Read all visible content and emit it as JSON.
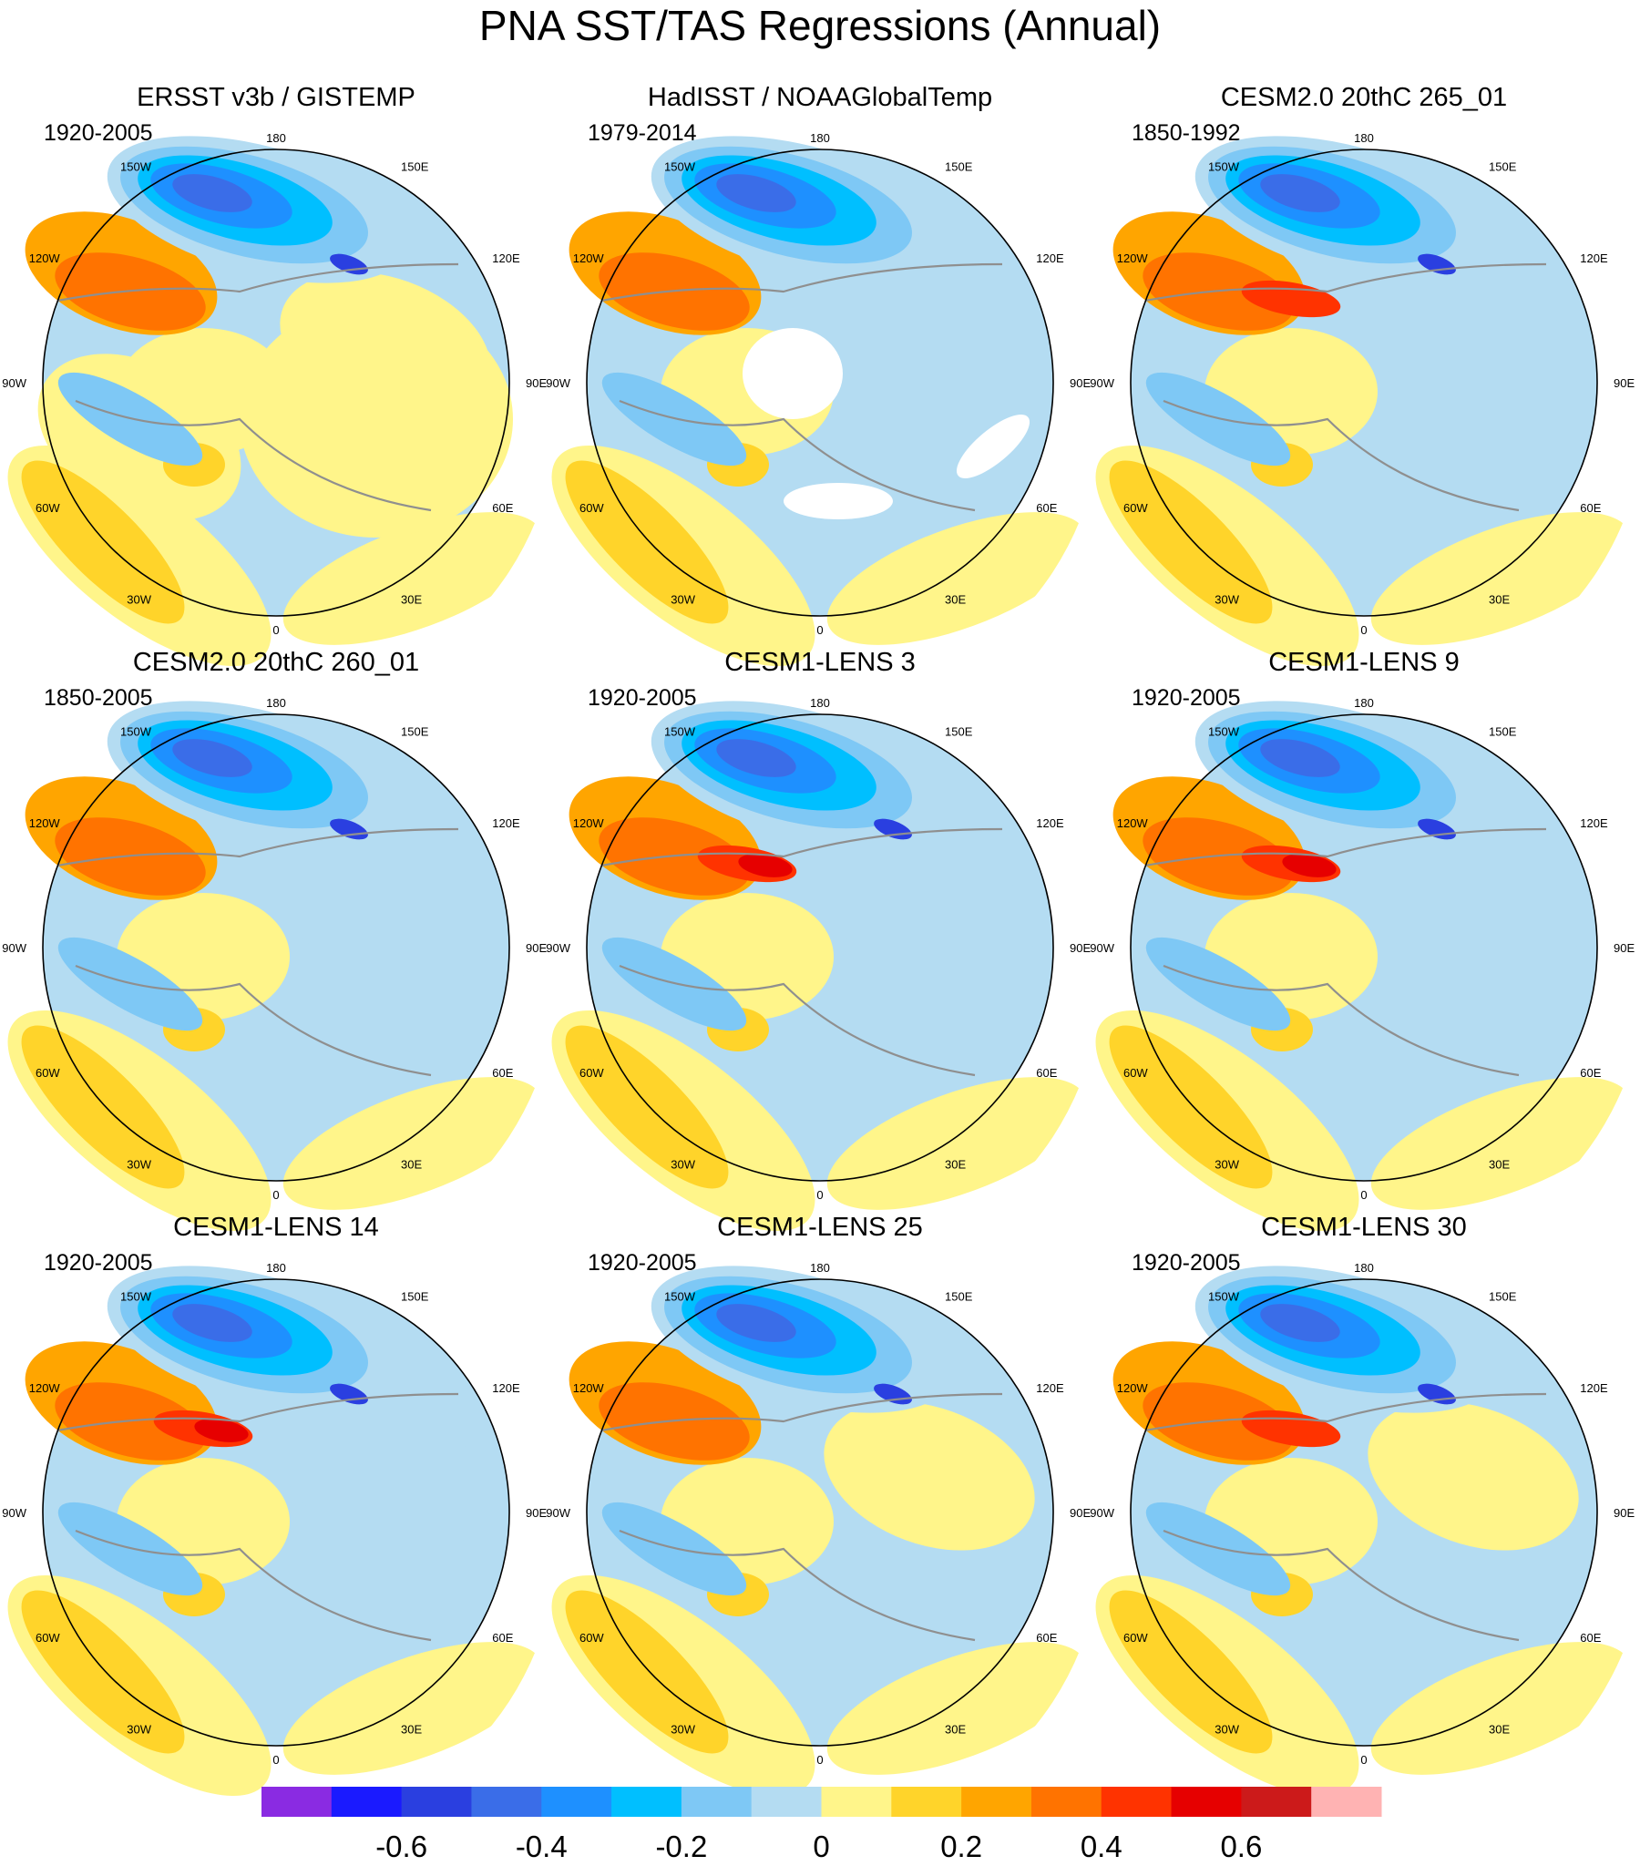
{
  "figure_title": "PNA SST/TAS Regressions (Annual)",
  "chart_data": {
    "type": "heatmap",
    "projection": "north polar stereographic",
    "longitude_labels": [
      "180",
      "150E",
      "120E",
      "90E",
      "60E",
      "30E",
      "0",
      "30W",
      "60W",
      "90W",
      "120W",
      "150W"
    ],
    "panels": [
      {
        "title": "ERSST v3b / GISTEMP",
        "period": "1920-2005"
      },
      {
        "title": "HadISST / NOAAGlobalTemp",
        "period": "1979-2014"
      },
      {
        "title": "CESM2.0 20thC 265_01",
        "period": "1850-1992"
      },
      {
        "title": "CESM2.0 20thC 260_01",
        "period": "1850-2005"
      },
      {
        "title": "CESM1-LENS 3",
        "period": "1920-2005"
      },
      {
        "title": "CESM1-LENS 9",
        "period": "1920-2005"
      },
      {
        "title": "CESM1-LENS 14",
        "period": "1920-2005"
      },
      {
        "title": "CESM1-LENS 25",
        "period": "1920-2005"
      },
      {
        "title": "CESM1-LENS 30",
        "period": "1920-2005"
      }
    ],
    "colorbar": {
      "colors": [
        "#8a2be2",
        "#1a1aff",
        "#2a3fe0",
        "#3a6de8",
        "#1e90ff",
        "#00bfff",
        "#7ec8f5",
        "#b4dcf2",
        "#fff58a",
        "#ffd42a",
        "#ffa500",
        "#ff7300",
        "#ff3300",
        "#e60000",
        "#cc1a1a",
        "#ffb3b3"
      ],
      "tick_labels": [
        "-0.6",
        "-0.4",
        "-0.2",
        "0",
        "0.2",
        "0.4",
        "0.6"
      ],
      "tick_values": [
        -0.6,
        -0.4,
        -0.2,
        0,
        0.2,
        0.4,
        0.6
      ],
      "level_step": 0.1,
      "range": [
        -0.8,
        0.8
      ]
    }
  }
}
